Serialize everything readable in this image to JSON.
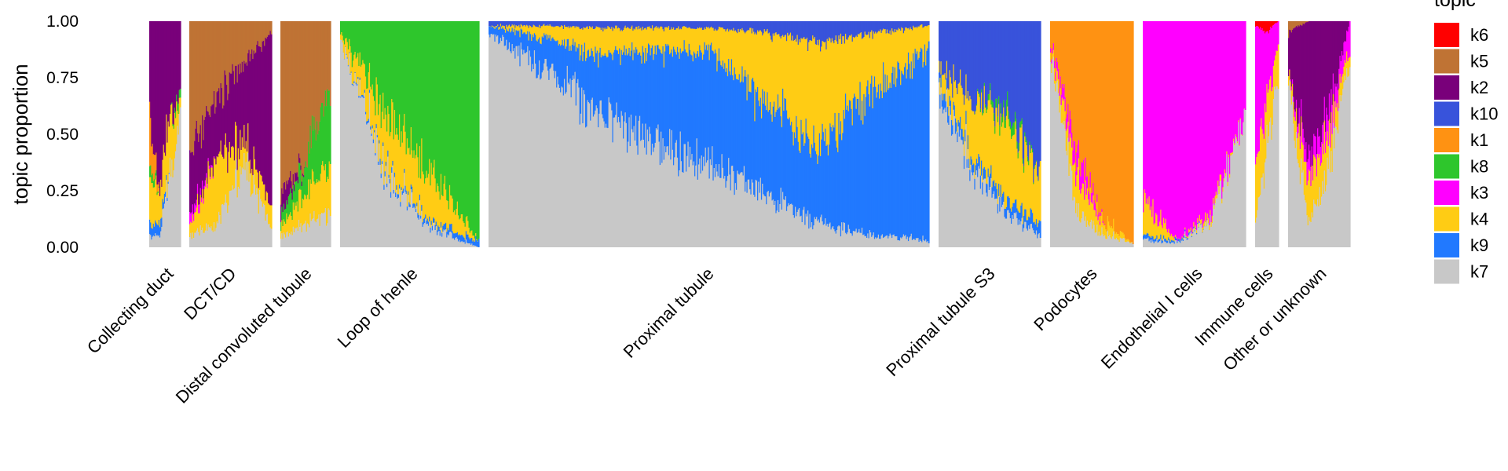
{
  "chart_data": {
    "type": "structure_stacked_bar",
    "ylabel": "topic proportion",
    "ylim": [
      0,
      1
    ],
    "y_ticks": [
      "0.00",
      "0.25",
      "0.50",
      "0.75",
      "1.00"
    ],
    "legend": {
      "title": "topic",
      "placement": "right",
      "entries": [
        {
          "name": "k6",
          "color": "#ff0000"
        },
        {
          "name": "k5",
          "color": "#bf7334"
        },
        {
          "name": "k2",
          "color": "#79007a"
        },
        {
          "name": "k10",
          "color": "#3853db"
        },
        {
          "name": "k1",
          "color": "#ff9212"
        },
        {
          "name": "k8",
          "color": "#2ec62c"
        },
        {
          "name": "k3",
          "color": "#ff00ff"
        },
        {
          "name": "k4",
          "color": "#ffcc14"
        },
        {
          "name": "k9",
          "color": "#2179ff"
        },
        {
          "name": "k7",
          "color": "#c8c8c8"
        }
      ]
    },
    "groups": [
      {
        "label": "Collecting duct",
        "n_cells": 34,
        "profile": [
          {
            "k2": 0.45,
            "k1": 0.2,
            "k4": 0.2,
            "k8": 0.05,
            "k9": 0.05,
            "k7": 0.05
          },
          {
            "k2": 0.75,
            "k4": 0.15,
            "k9": 0.05,
            "k7": 0.05
          },
          {
            "k2": 0.4,
            "k4": 0.25,
            "k7": 0.35
          },
          {
            "k2": 0.35,
            "k4": 0.05,
            "k8": 0.05,
            "k7": 0.55
          }
        ]
      },
      {
        "label": "DCT/CD",
        "n_cells": 85,
        "profile": [
          {
            "k5": 0.55,
            "k2": 0.3,
            "k3": 0.05,
            "k4": 0.05,
            "k7": 0.05
          },
          {
            "k5": 0.35,
            "k2": 0.25,
            "k4": 0.3,
            "k7": 0.1
          },
          {
            "k5": 0.2,
            "k2": 0.35,
            "k4": 0.1,
            "k7": 0.35
          },
          {
            "k5": 0.05,
            "k2": 0.75,
            "k4": 0.1,
            "k7": 0.1
          }
        ]
      },
      {
        "label": "Distal convoluted tubule",
        "n_cells": 53,
        "profile": [
          {
            "k5": 0.75,
            "k2": 0.1,
            "k8": 0.05,
            "k4": 0.05,
            "k7": 0.05
          },
          {
            "k5": 0.6,
            "k8": 0.15,
            "k4": 0.15,
            "k7": 0.1
          },
          {
            "k5": 0.3,
            "k8": 0.35,
            "k4": 0.2,
            "k7": 0.15
          }
        ]
      },
      {
        "label": "Loop of henle",
        "n_cells": 144,
        "profile": [
          {
            "k8": 0.05,
            "k4": 0.03,
            "k7": 0.92
          },
          {
            "k8": 0.4,
            "k4": 0.25,
            "k9": 0.02,
            "k7": 0.33
          },
          {
            "k8": 0.7,
            "k4": 0.2,
            "k9": 0.02,
            "k7": 0.08
          },
          {
            "k8": 0.97,
            "k9": 0.03
          }
        ]
      },
      {
        "label": "Proximal tubule",
        "n_cells": 456,
        "profile": [
          {
            "k10": 0.02,
            "k9": 0.03,
            "k7": 0.95
          },
          {
            "k10": 0.02,
            "k4": 0.05,
            "k9": 0.13,
            "k7": 0.8
          },
          {
            "k10": 0.03,
            "k4": 0.12,
            "k9": 0.25,
            "k7": 0.6
          },
          {
            "k10": 0.03,
            "k4": 0.1,
            "k9": 0.42,
            "k7": 0.45
          },
          {
            "k10": 0.03,
            "k4": 0.1,
            "k9": 0.5,
            "k7": 0.37
          },
          {
            "k10": 0.05,
            "k4": 0.3,
            "k9": 0.4,
            "k7": 0.25
          },
          {
            "k10": 0.1,
            "k4": 0.45,
            "k9": 0.35,
            "k7": 0.1
          },
          {
            "k10": 0.05,
            "k4": 0.25,
            "k9": 0.65,
            "k7": 0.05
          },
          {
            "k10": 0.02,
            "k4": 0.1,
            "k9": 0.85,
            "k7": 0.03
          }
        ]
      },
      {
        "label": "Proximal tubule S3",
        "n_cells": 106,
        "profile": [
          {
            "k10": 0.2,
            "k4": 0.05,
            "k9": 0.05,
            "k7": 0.7
          },
          {
            "k10": 0.35,
            "k4": 0.25,
            "k9": 0.05,
            "k7": 0.35
          },
          {
            "k10": 0.4,
            "k8": 0.05,
            "k4": 0.35,
            "k9": 0.05,
            "k7": 0.15
          },
          {
            "k10": 0.7,
            "k4": 0.2,
            "k9": 0.05,
            "k7": 0.05
          }
        ]
      },
      {
        "label": "Podocytes",
        "n_cells": 86,
        "profile": [
          {
            "k1": 0.1,
            "k3": 0.02,
            "k4": 0.03,
            "k7": 0.85
          },
          {
            "k1": 0.6,
            "k3": 0.1,
            "k4": 0.15,
            "k7": 0.15
          },
          {
            "k1": 0.9,
            "k4": 0.05,
            "k7": 0.05
          },
          {
            "k1": 0.98,
            "k7": 0.02
          }
        ]
      },
      {
        "label": "Endothelial I cells",
        "n_cells": 106,
        "profile": [
          {
            "k3": 0.8,
            "k4": 0.15,
            "k9": 0.02,
            "k7": 0.03
          },
          {
            "k3": 0.97,
            "k9": 0.01,
            "k7": 0.02
          },
          {
            "k3": 0.85,
            "k4": 0.03,
            "k7": 0.12
          },
          {
            "k3": 0.4,
            "k7": 0.6
          }
        ]
      },
      {
        "label": "Immune cells",
        "n_cells": 25,
        "profile": [
          {
            "k6": 0.02,
            "k3": 0.6,
            "k4": 0.3,
            "k7": 0.08
          },
          {
            "k6": 0.05,
            "k3": 0.3,
            "k4": 0.2,
            "k7": 0.45
          },
          {
            "k3": 0.1,
            "k4": 0.15,
            "k7": 0.75
          }
        ]
      },
      {
        "label": "Other or unknown",
        "n_cells": 64,
        "profile": [
          {
            "k2": 0.15,
            "k5": 0.05,
            "k4": 0.05,
            "k7": 0.75
          },
          {
            "k2": 0.6,
            "k3": 0.1,
            "k4": 0.2,
            "k7": 0.1
          },
          {
            "k2": 0.4,
            "k3": 0.1,
            "k4": 0.15,
            "k7": 0.35
          },
          {
            "k3": 0.1,
            "k4": 0.05,
            "k7": 0.85
          }
        ]
      }
    ]
  }
}
